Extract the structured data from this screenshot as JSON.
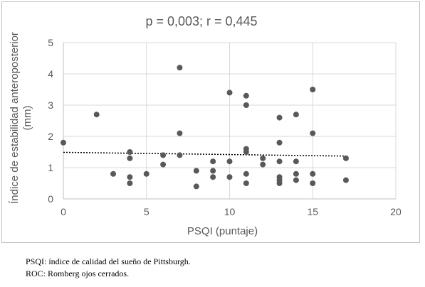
{
  "chart_data": {
    "type": "scatter",
    "title": "p = 0,003; r = 0,445",
    "xlabel": "PSQI (puntaje)",
    "ylabel_lines": [
      "Índice de estabilidad anteroposterior",
      "(mm)"
    ],
    "xlim": [
      0,
      20
    ],
    "ylim": [
      0,
      5
    ],
    "x_ticks": [
      "0",
      "5",
      "10",
      "15",
      "20"
    ],
    "y_ticks": [
      "0",
      "1",
      "2",
      "3",
      "4",
      "5"
    ],
    "grid": true,
    "legend": "none",
    "point_color": "#595959",
    "trendline": {
      "style": "dotted",
      "from": [
        0,
        1.49
      ],
      "to": [
        17,
        1.37
      ]
    },
    "points": [
      [
        0,
        1.8
      ],
      [
        2,
        2.7
      ],
      [
        3,
        0.8
      ],
      [
        4,
        1.5
      ],
      [
        4,
        1.3
      ],
      [
        4,
        0.7
      ],
      [
        4,
        0.5
      ],
      [
        5,
        0.8
      ],
      [
        6,
        1.4
      ],
      [
        6,
        1.1
      ],
      [
        7,
        4.2
      ],
      [
        7,
        2.1
      ],
      [
        7,
        1.4
      ],
      [
        8,
        0.9
      ],
      [
        8,
        0.4
      ],
      [
        9,
        1.2
      ],
      [
        9,
        0.9
      ],
      [
        9,
        0.7
      ],
      [
        10,
        3.4
      ],
      [
        10,
        1.2
      ],
      [
        10,
        0.7
      ],
      [
        11,
        3.3
      ],
      [
        11,
        3.0
      ],
      [
        11,
        1.6
      ],
      [
        11,
        1.5
      ],
      [
        11,
        0.8
      ],
      [
        11,
        0.5
      ],
      [
        12,
        1.3
      ],
      [
        12,
        1.1
      ],
      [
        13,
        2.6
      ],
      [
        13,
        1.8
      ],
      [
        13,
        1.2
      ],
      [
        13,
        0.7
      ],
      [
        13,
        0.6
      ],
      [
        13,
        0.5
      ],
      [
        14,
        2.7
      ],
      [
        14,
        1.2
      ],
      [
        14,
        0.8
      ],
      [
        14,
        0.6
      ],
      [
        15,
        3.5
      ],
      [
        15,
        2.1
      ],
      [
        15,
        0.8
      ],
      [
        15,
        0.5
      ],
      [
        17,
        1.3
      ],
      [
        17,
        0.6
      ]
    ]
  },
  "footnotes": {
    "line1": "PSQI: índice de calidad del sueño de Pittsburgh.",
    "line2": "ROC: Romberg ojos cerrados."
  }
}
